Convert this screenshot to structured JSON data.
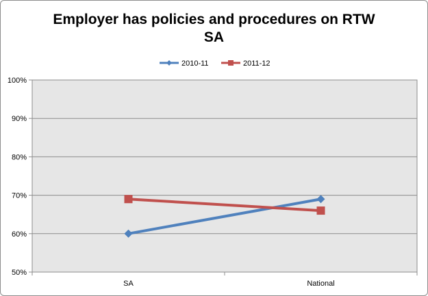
{
  "chart_data": {
    "type": "line",
    "title": "Employer has policies and procedures on RTW",
    "subtitle": "SA",
    "categories": [
      "SA",
      "National"
    ],
    "series": [
      {
        "name": "2010-11",
        "values": [
          60,
          69
        ],
        "color": "#4f81bd",
        "marker": "diamond"
      },
      {
        "name": "2011-12",
        "values": [
          69,
          66
        ],
        "color": "#c0504d",
        "marker": "square"
      }
    ],
    "ylim": [
      50,
      100
    ],
    "yticks": [
      "50%",
      "60%",
      "70%",
      "80%",
      "90%",
      "100%"
    ],
    "ytick_values": [
      50,
      60,
      70,
      80,
      90,
      100
    ],
    "grid": true,
    "legend_position": "top",
    "plot_background": "#e6e6e6"
  }
}
